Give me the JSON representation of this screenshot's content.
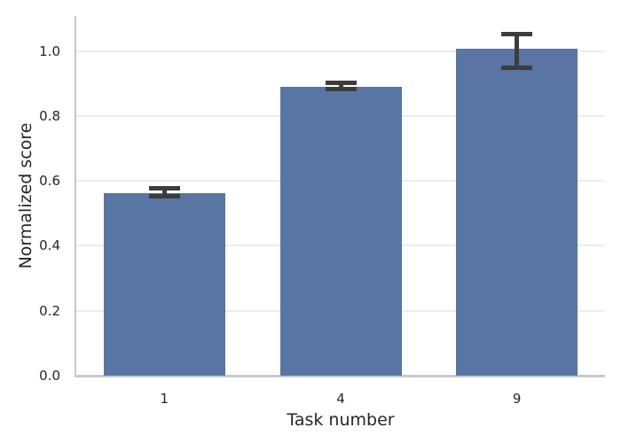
{
  "figure": {
    "background": "#ffffff"
  },
  "chart_data": {
    "type": "bar",
    "title": "",
    "xlabel": "Task number",
    "ylabel": "Normalized score",
    "categories": [
      "1",
      "4",
      "9"
    ],
    "values": [
      0.563,
      0.89,
      1.007
    ],
    "error_low": [
      0.553,
      0.882,
      0.947
    ],
    "error_high": [
      0.578,
      0.901,
      1.052
    ],
    "yticks": [
      0,
      0.2,
      0.4,
      0.6,
      0.8,
      1.0
    ],
    "ytick_labels": [
      "0.0",
      "0.2",
      "0.4",
      "0.6",
      "0.8",
      "1.0"
    ],
    "ylim": [
      0,
      1.108
    ],
    "grid": true,
    "legend": false,
    "colors": {
      "bar": "#5975a4",
      "error": "#3d3d3d",
      "grid": "#ececec",
      "spine": "#c9c9c9",
      "text": "#262626"
    }
  }
}
